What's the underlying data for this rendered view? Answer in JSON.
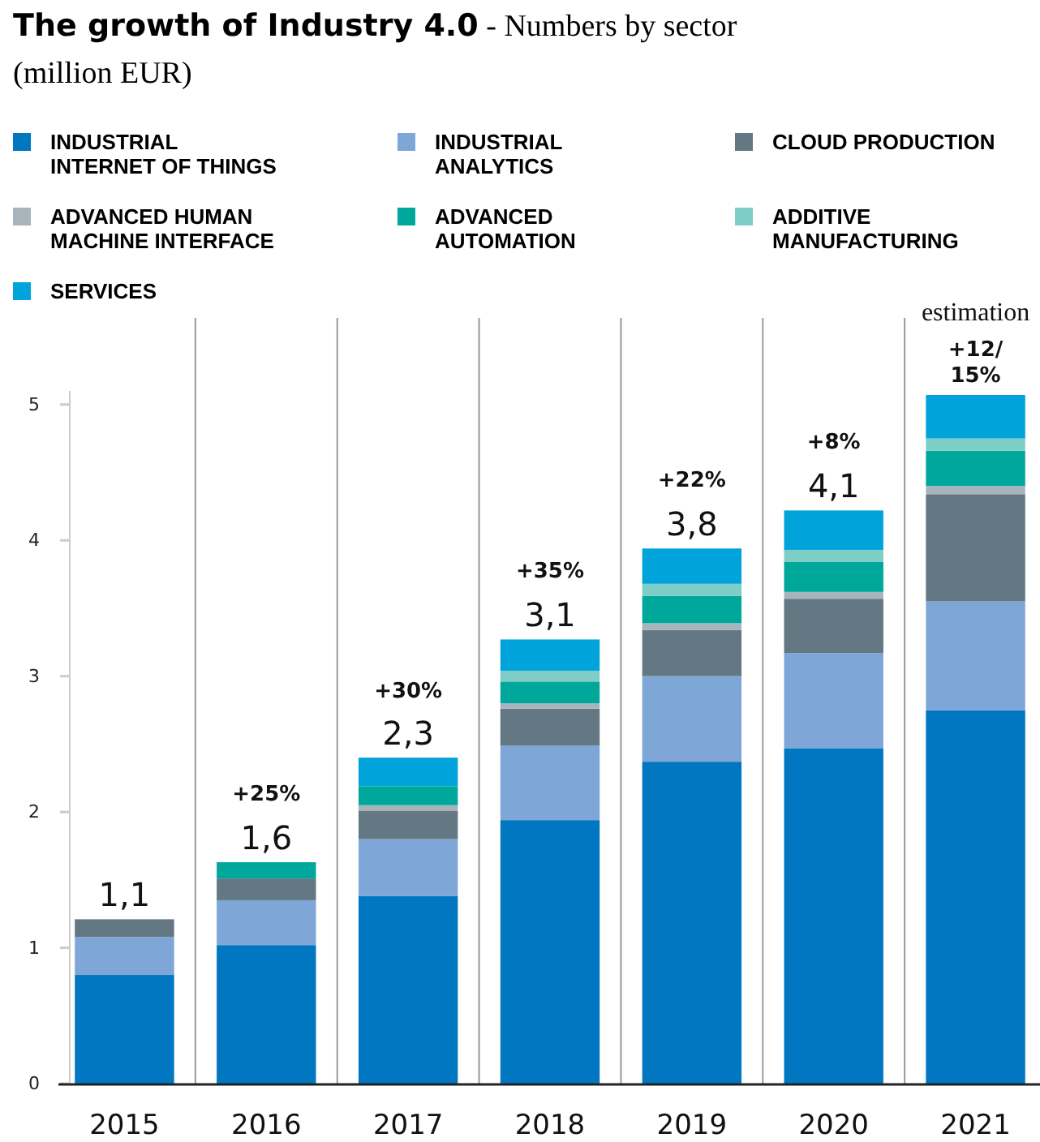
{
  "chart_data": {
    "type": "bar",
    "stacked": true,
    "title": "The growth of Industry 4.0",
    "subtitle": "- Numbers by sector (million EUR)",
    "categories": [
      "2015",
      "2016",
      "2017",
      "2018",
      "2019",
      "2020",
      "2021"
    ],
    "series": [
      {
        "name": "INDUSTRIAL INTERNET OF THINGS",
        "color": "#0077c0",
        "values": [
          0.8,
          1.02,
          1.38,
          1.94,
          2.37,
          2.47,
          2.75
        ]
      },
      {
        "name": "INDUSTRIAL ANALYTICS",
        "color": "#7ea7d8",
        "values": [
          0.28,
          0.33,
          0.42,
          0.55,
          0.63,
          0.7,
          0.8
        ]
      },
      {
        "name": "CLOUD PRODUCTION",
        "color": "#647883",
        "values": [
          0.13,
          0.16,
          0.21,
          0.27,
          0.34,
          0.4,
          0.79
        ]
      },
      {
        "name": "ADVANCED HUMAN MACHINE INTERFACE",
        "color": "#a8b4bc",
        "values": [
          0,
          0,
          0.04,
          0.04,
          0.05,
          0.05,
          0.06
        ]
      },
      {
        "name": "ADVANCED AUTOMATION",
        "color": "#00a89c",
        "values": [
          0,
          0.12,
          0.14,
          0.16,
          0.2,
          0.22,
          0.26
        ]
      },
      {
        "name": "ADDITIVE MANUFACTURING",
        "color": "#7ecdc6",
        "values": [
          0,
          0,
          0,
          0.08,
          0.09,
          0.09,
          0.09
        ]
      },
      {
        "name": "SERVICES",
        "color": "#00a3da",
        "values": [
          0,
          0,
          0.21,
          0.23,
          0.26,
          0.29,
          0.32
        ]
      }
    ],
    "totals": [
      "1,1",
      "1,6",
      "2,3",
      "3,1",
      "3,8",
      "4,1",
      null
    ],
    "annotations": [
      {
        "text": "+25%",
        "x": "2016",
        "y": 1.63
      },
      {
        "text": "+30%",
        "x": "2017",
        "y": 2.39
      },
      {
        "text": "+35%",
        "x": "2018",
        "y": 3.27
      },
      {
        "text": "+22%",
        "x": "2019",
        "y": 3.94
      },
      {
        "text": "+8%",
        "x": "2020",
        "y": 4.22
      },
      {
        "text": "+12/ 15%",
        "x": "2021",
        "y": 5.07
      },
      {
        "text": "estimation",
        "x": "2021",
        "y": 5.07
      }
    ],
    "ylim": [
      0,
      5.1
    ],
    "yticks": [
      0,
      1,
      2,
      3,
      4,
      5
    ],
    "grid": false,
    "legend": "top"
  }
}
